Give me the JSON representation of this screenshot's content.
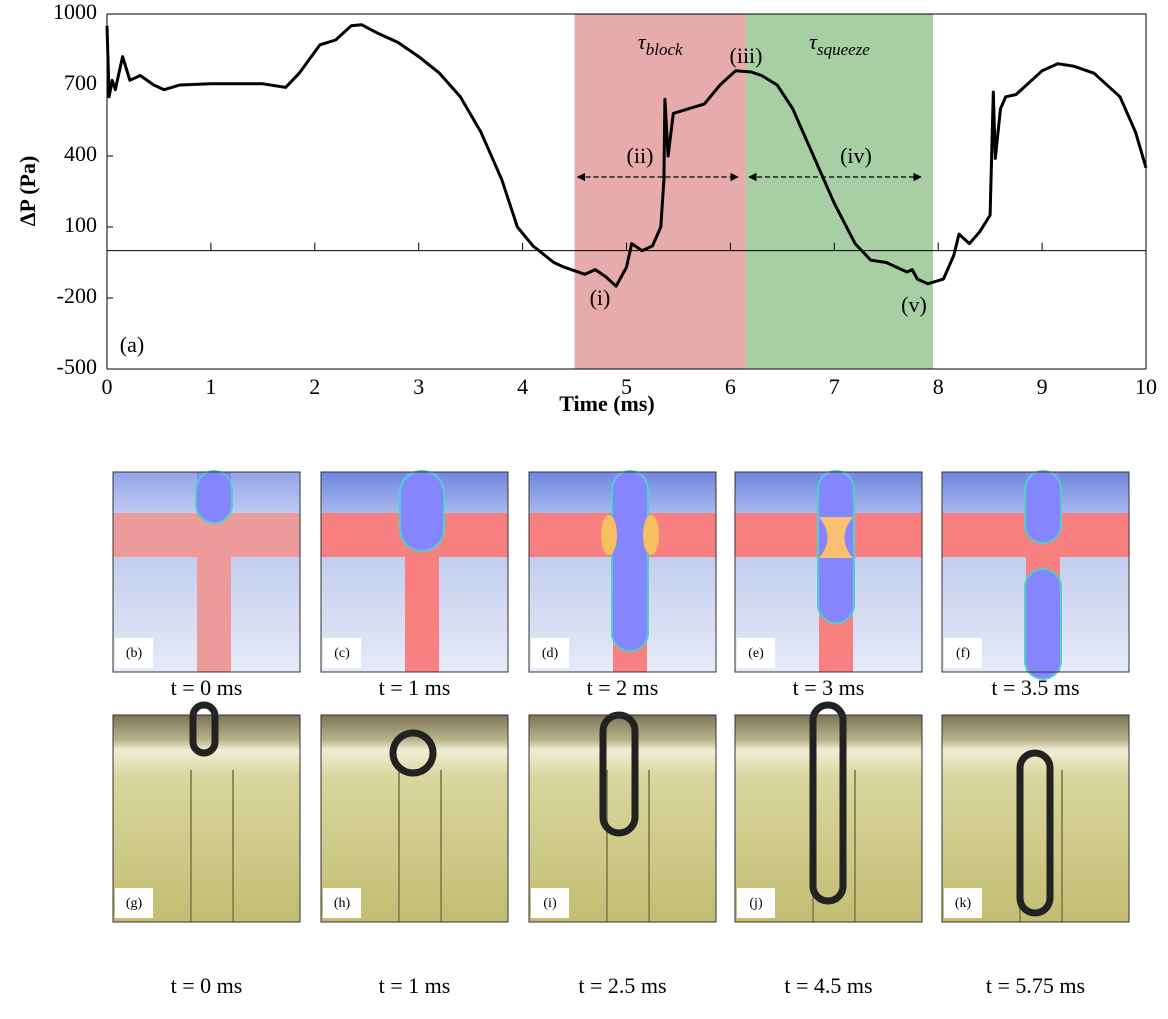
{
  "chart_data": {
    "type": "line",
    "x_label": "Time (ms)",
    "y_label": "ΔP (Pa)",
    "xlim": [
      0,
      10
    ],
    "xticks": [
      0,
      1,
      2,
      3,
      4,
      5,
      6,
      7,
      8,
      9,
      10
    ],
    "ylim": [
      -500,
      1000
    ],
    "yticks": [
      -500,
      -200,
      100,
      400,
      700,
      1000
    ],
    "grid": false,
    "x": [
      0,
      0.02,
      0.05,
      0.08,
      0.15,
      0.22,
      0.32,
      0.45,
      0.55,
      0.7,
      1.0,
      1.5,
      1.72,
      1.85,
      2.05,
      2.2,
      2.35,
      2.45,
      2.6,
      2.8,
      3.0,
      3.2,
      3.4,
      3.6,
      3.8,
      3.95,
      4.1,
      4.3,
      4.4,
      4.6,
      4.7,
      4.8,
      4.9,
      5.0,
      5.05,
      5.15,
      5.25,
      5.33,
      5.36,
      5.37,
      5.4,
      5.45,
      5.6,
      5.75,
      5.9,
      6.05,
      6.2,
      6.3,
      6.45,
      6.6,
      6.8,
      7.0,
      7.2,
      7.35,
      7.5,
      7.6,
      7.7,
      7.75,
      7.8,
      7.9,
      8.05,
      8.15,
      8.2,
      8.3,
      8.4,
      8.5,
      8.53,
      8.55,
      8.6,
      8.65,
      8.75,
      8.85,
      9.0,
      9.15,
      9.3,
      9.5,
      9.75,
      9.9,
      10.0
    ],
    "series": [
      {
        "color": "#000000",
        "values": [
          950,
          650,
          720,
          680,
          820,
          720,
          740,
          700,
          680,
          700,
          705,
          705,
          690,
          750,
          870,
          890,
          950,
          955,
          920,
          880,
          820,
          750,
          650,
          500,
          300,
          100,
          20,
          -50,
          -70,
          -100,
          -80,
          -110,
          -150,
          -70,
          30,
          0,
          20,
          100,
          300,
          640,
          400,
          580,
          600,
          620,
          700,
          760,
          755,
          740,
          700,
          600,
          400,
          200,
          30,
          -40,
          -50,
          -70,
          -90,
          -80,
          -120,
          -140,
          -120,
          -20,
          70,
          30,
          80,
          150,
          670,
          390,
          600,
          650,
          660,
          700,
          760,
          790,
          780,
          750,
          650,
          500,
          350
        ]
      }
    ],
    "regions": [
      {
        "symbol": "τ",
        "subscript": "block",
        "x": [
          4.5,
          6.15
        ],
        "color": "#e8abab"
      },
      {
        "symbol": "τ",
        "subscript": "squeeze",
        "x": [
          6.15,
          7.95
        ],
        "color": "#a8cfa4"
      }
    ],
    "annotations": [
      "(i)",
      "(ii)",
      "(iii)",
      "(iv)",
      "(v)",
      "(a)"
    ]
  },
  "simulation_panels": [
    {
      "label": "(b)",
      "time": "t = 0 ms"
    },
    {
      "label": "(c)",
      "time": "t = 1 ms"
    },
    {
      "label": "(d)",
      "time": "t = 2 ms"
    },
    {
      "label": "(e)",
      "time": "t = 3 ms"
    },
    {
      "label": "(f)",
      "time": "t = 3.5 ms"
    }
  ],
  "photo_panels": [
    {
      "label": "(g)",
      "time": "t = 0 ms"
    },
    {
      "label": "(h)",
      "time": "t = 1 ms"
    },
    {
      "label": "(i)",
      "time": "t = 2.5 ms"
    },
    {
      "label": "(j)",
      "time": "t = 4.5 ms"
    },
    {
      "label": "(k)",
      "time": "t = 5.75 ms"
    }
  ]
}
